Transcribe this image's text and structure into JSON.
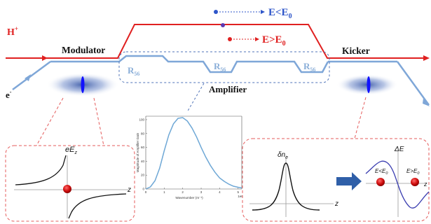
{
  "colors": {
    "proton": "#e02020",
    "electron": "#7fa7d8",
    "electron_text": "#2d55c9",
    "r56_text": "#8aaed8",
    "dashed_red": "#e45b5b",
    "dashed_blue": "#4f73b8",
    "curve_blue": "#6fa8d6",
    "arrow_blue": "#2f5fa8",
    "kicker_wave": "#3a3db0"
  },
  "legend": {
    "low_energy": {
      "base": "E<E",
      "sub": "0"
    },
    "high_energy": {
      "base": "E>E",
      "sub": "0"
    }
  },
  "labels": {
    "proton": {
      "base": "H",
      "sup": "+"
    },
    "electron": {
      "base": "e",
      "sup": "-"
    },
    "modulator": "Modulator",
    "kicker": "Kicker",
    "amplifier": "Amplifier",
    "r56": {
      "base": "R",
      "sub": "56"
    }
  },
  "modulator_inset": {
    "y_axis": {
      "base": "eE",
      "sub": "z"
    },
    "x_axis": "z"
  },
  "amplifier_chart": {
    "ylabel": "Magnitude of Amplifier Gain",
    "xlabel": "Wavenumber (m⁻¹)",
    "yticks": [
      "0",
      "20",
      "40",
      "60",
      "80",
      "100"
    ],
    "xticks": [
      "0",
      "1",
      "2",
      "3",
      "4",
      "5",
      "1e6"
    ]
  },
  "chart_data": {
    "type": "line",
    "title": "",
    "xlabel": "Wavenumber (m⁻¹)",
    "ylabel": "Magnitude of Amplifier Gain",
    "x_scale_note": "1e6",
    "xlim": [
      0,
      5.2
    ],
    "ylim": [
      0,
      105
    ],
    "grid": false,
    "series": [
      {
        "x": [
          0,
          0.25,
          0.5,
          0.75,
          1.0,
          1.25,
          1.5,
          1.75,
          2.0,
          2.25,
          2.5,
          2.75,
          3.0,
          3.25,
          3.5,
          3.75,
          4.0,
          4.25,
          4.5,
          4.75,
          5.0,
          5.2
        ],
        "y": [
          0,
          3,
          12,
          30,
          55,
          78,
          94,
          102,
          103,
          98,
          88,
          75,
          60,
          46,
          34,
          24,
          16,
          11,
          7,
          4,
          2.5,
          1.5
        ]
      }
    ]
  },
  "kicker_inset": {
    "density_label": {
      "base": "δn",
      "sub": "e"
    },
    "energy_label": "ΔE",
    "x_axis": "z",
    "low_energy": {
      "base": "E<E",
      "sub": "0"
    },
    "high_energy": {
      "base": "E>E",
      "sub": "0"
    }
  }
}
